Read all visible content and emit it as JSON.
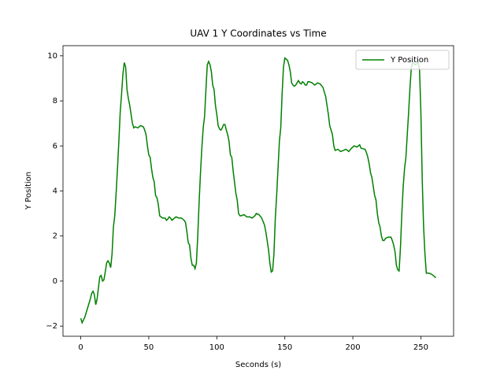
{
  "chart_data": {
    "type": "line",
    "title": "UAV 1 Y Coordinates vs Time",
    "xlabel": "Seconds (s)",
    "ylabel": "Y Position",
    "x": [
      0,
      1,
      3,
      5,
      7,
      8,
      9,
      10,
      11,
      12,
      13,
      14,
      15,
      16,
      17,
      18,
      19,
      20,
      21,
      22,
      23,
      24,
      25,
      26,
      27,
      28,
      29,
      30,
      31,
      32,
      33,
      34,
      35,
      36,
      37,
      38,
      39,
      40,
      42,
      44,
      46,
      47,
      48,
      49,
      50,
      51,
      52,
      53,
      54,
      55,
      56,
      57,
      58,
      60,
      62,
      63,
      64,
      65,
      66,
      67,
      68,
      70,
      72,
      74,
      76,
      77,
      78,
      79,
      80,
      81,
      82,
      83,
      84,
      85,
      86,
      87,
      88,
      89,
      90,
      91,
      92,
      93,
      94,
      95,
      96,
      97,
      98,
      99,
      100,
      101,
      102,
      103,
      104,
      105,
      106,
      107,
      108,
      109,
      110,
      111,
      112,
      113,
      114,
      115,
      116,
      117,
      118,
      120,
      122,
      124,
      126,
      128,
      129,
      131,
      133,
      135,
      136,
      137,
      138,
      139,
      140,
      141,
      142,
      143,
      144,
      145,
      146,
      147,
      148,
      149,
      150,
      152,
      153,
      154,
      155,
      156,
      157,
      158,
      159,
      160,
      161,
      162,
      163,
      164,
      165,
      166,
      167,
      168,
      170,
      172,
      174,
      176,
      178,
      180,
      181,
      182,
      183,
      184,
      185,
      186,
      187,
      189,
      191,
      193,
      195,
      197,
      199,
      201,
      203,
      205,
      206,
      209,
      210,
      211,
      212,
      213,
      214,
      215,
      216,
      217,
      218,
      219,
      220,
      221,
      222,
      223,
      224,
      226,
      228,
      229,
      230,
      231,
      232,
      233,
      234,
      235,
      236,
      237,
      238,
      239,
      240,
      241,
      242,
      243,
      244,
      246,
      248,
      249,
      250,
      251,
      252,
      253,
      254,
      256,
      258,
      260,
      261
    ],
    "series": [
      {
        "name": "Y Position",
        "color": "#008000",
        "values": [
          -1.65,
          -1.85,
          -1.6,
          -1.2,
          -0.8,
          -0.55,
          -0.45,
          -0.6,
          -1.05,
          -0.8,
          -0.3,
          0.2,
          0.25,
          0.0,
          0.05,
          0.4,
          0.8,
          0.9,
          0.8,
          0.6,
          1.2,
          2.4,
          2.9,
          3.9,
          5.0,
          6.2,
          7.5,
          8.3,
          9.2,
          9.7,
          9.5,
          8.5,
          8.1,
          7.8,
          7.4,
          7.0,
          6.8,
          6.85,
          6.8,
          6.9,
          6.85,
          6.7,
          6.5,
          6.0,
          5.6,
          5.5,
          5.0,
          4.6,
          4.4,
          3.8,
          3.7,
          3.4,
          2.9,
          2.8,
          2.8,
          2.7,
          2.75,
          2.85,
          2.8,
          2.7,
          2.75,
          2.85,
          2.8,
          2.8,
          2.7,
          2.6,
          2.2,
          1.7,
          1.6,
          1.0,
          0.7,
          0.7,
          0.55,
          0.8,
          2.0,
          3.5,
          4.8,
          5.9,
          6.8,
          7.3,
          8.5,
          9.6,
          9.75,
          9.6,
          9.3,
          8.7,
          8.5,
          7.8,
          7.4,
          6.9,
          6.75,
          6.7,
          6.8,
          6.95,
          6.95,
          6.7,
          6.5,
          6.2,
          5.6,
          5.5,
          4.9,
          4.4,
          3.9,
          3.6,
          3.0,
          2.9,
          2.9,
          2.95,
          2.85,
          2.85,
          2.8,
          2.9,
          3.0,
          2.95,
          2.8,
          2.5,
          2.2,
          1.8,
          1.4,
          0.8,
          0.4,
          0.45,
          1.2,
          2.8,
          3.8,
          5.0,
          6.2,
          6.8,
          8.3,
          9.5,
          9.9,
          9.8,
          9.6,
          9.3,
          8.8,
          8.7,
          8.65,
          8.7,
          8.8,
          8.9,
          8.8,
          8.75,
          8.85,
          8.8,
          8.7,
          8.7,
          8.85,
          8.85,
          8.8,
          8.7,
          8.8,
          8.75,
          8.6,
          8.2,
          7.8,
          7.4,
          6.9,
          6.7,
          6.5,
          6.0,
          5.8,
          5.85,
          5.75,
          5.8,
          5.85,
          5.75,
          5.9,
          6.0,
          5.95,
          6.05,
          5.9,
          5.85,
          5.7,
          5.5,
          5.2,
          4.8,
          4.6,
          4.2,
          3.8,
          3.6,
          3.0,
          2.6,
          2.4,
          2.0,
          1.8,
          1.8,
          1.9,
          1.95,
          1.95,
          1.8,
          1.6,
          1.3,
          0.7,
          0.5,
          0.45,
          1.5,
          3.0,
          4.2,
          5.0,
          5.5,
          6.5,
          7.5,
          8.6,
          9.5,
          9.7,
          9.6,
          9.7,
          9.4,
          7.5,
          4.5,
          2.4,
          1.2,
          0.35,
          0.35,
          0.3,
          0.2,
          0.15
        ]
      }
    ],
    "xlim": [
      -13.05,
      274.05
    ],
    "ylim": [
      -2.45,
      10.45
    ],
    "xticks": [
      0,
      50,
      100,
      150,
      200,
      250
    ],
    "yticks": [
      {
        "value": -2,
        "label": "−2"
      },
      0,
      2,
      4,
      6,
      8,
      10
    ],
    "legend": "upper right"
  }
}
